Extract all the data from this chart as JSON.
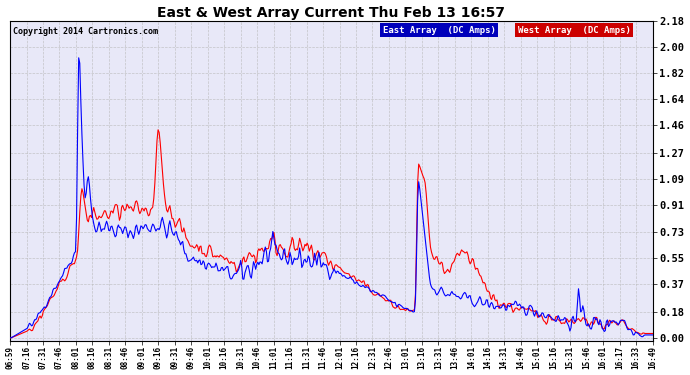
{
  "title": "East & West Array Current Thu Feb 13 16:57",
  "copyright": "Copyright 2014 Cartronics.com",
  "legend_east": "East Array  (DC Amps)",
  "legend_west": "West Array  (DC Amps)",
  "east_color": "#0000ff",
  "west_color": "#ff0000",
  "legend_east_bg": "#0000bb",
  "legend_west_bg": "#cc0000",
  "background_color": "#ffffff",
  "plot_bg": "#e8e8f8",
  "grid_color": "#bbbbbb",
  "yticks": [
    0.0,
    0.18,
    0.37,
    0.55,
    0.73,
    0.91,
    1.09,
    1.27,
    1.46,
    1.64,
    1.82,
    2.0,
    2.18
  ],
  "xtick_labels": [
    "06:59",
    "07:16",
    "07:31",
    "07:46",
    "08:01",
    "08:16",
    "08:31",
    "08:46",
    "09:01",
    "09:16",
    "09:31",
    "09:46",
    "10:01",
    "10:16",
    "10:31",
    "10:46",
    "11:01",
    "11:16",
    "11:31",
    "11:46",
    "12:01",
    "12:16",
    "12:31",
    "12:46",
    "13:01",
    "13:16",
    "13:31",
    "13:46",
    "14:01",
    "14:16",
    "14:31",
    "14:46",
    "15:01",
    "15:16",
    "15:31",
    "15:46",
    "16:01",
    "16:17",
    "16:33",
    "16:49"
  ],
  "ymax": 2.18,
  "ymin": 0.0,
  "figwidth": 6.9,
  "figheight": 3.75,
  "dpi": 100
}
